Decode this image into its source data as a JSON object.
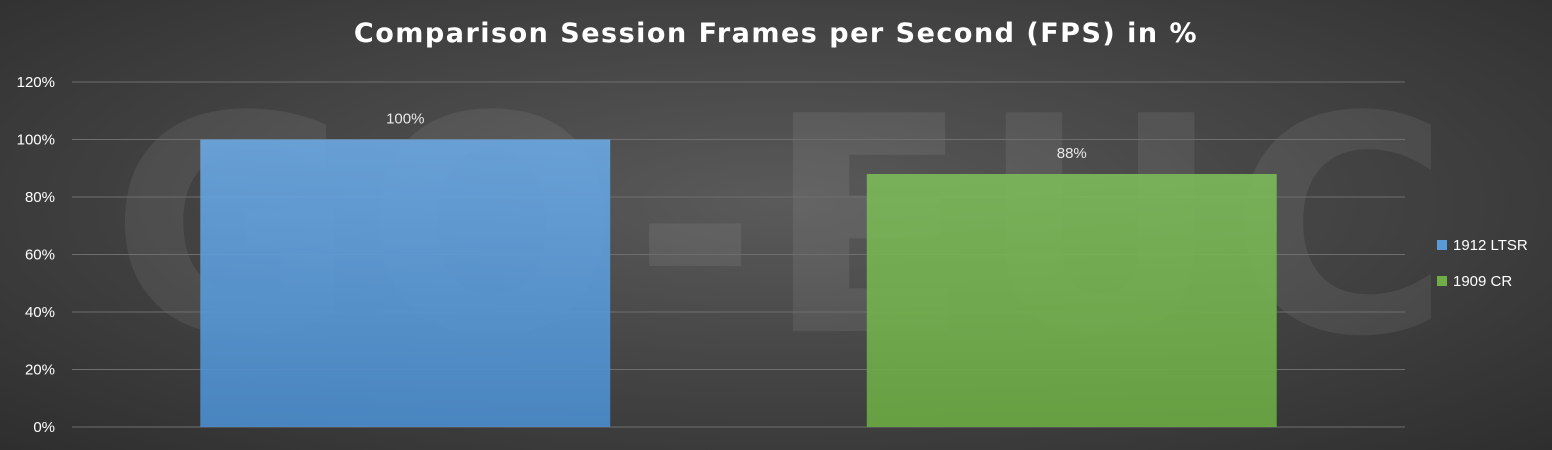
{
  "chart_data": {
    "type": "bar",
    "title": "Comparison Session Frames per Second (FPS) in %",
    "watermark": "GO-EUC",
    "categories": [
      "1912 LTSR",
      "1909 CR"
    ],
    "values": [
      100,
      88
    ],
    "data_labels": [
      "100%",
      "88%"
    ],
    "colors": [
      "#5b9bd5",
      "#70ad47"
    ],
    "ylim": [
      0,
      120
    ],
    "yticks": [
      0,
      20,
      40,
      60,
      80,
      100,
      120
    ],
    "ytick_labels": [
      "0%",
      "20%",
      "40%",
      "60%",
      "80%",
      "100%",
      "120%"
    ],
    "xlabel": "",
    "ylabel": "",
    "grid": true,
    "legend": "right"
  }
}
